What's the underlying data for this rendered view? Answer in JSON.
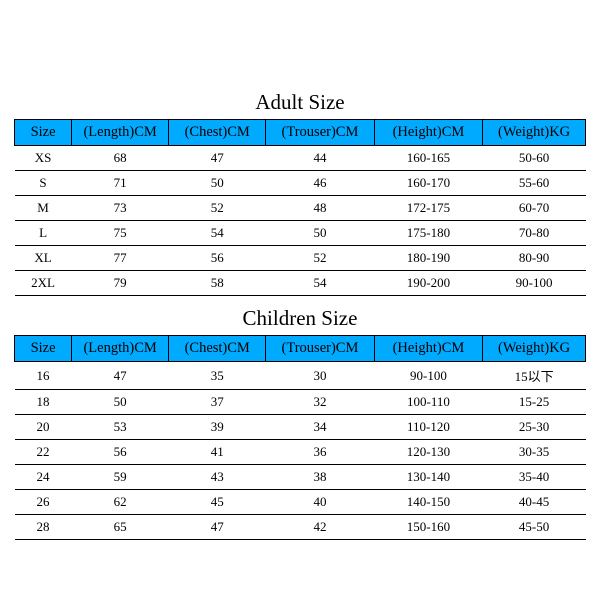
{
  "adult": {
    "title": "Adult Size",
    "columns": [
      "Size",
      "(Length)CM",
      "(Chest)CM",
      "(Trouser)CM",
      "(Height)CM",
      "(Weight)KG"
    ],
    "rows": [
      [
        "XS",
        "68",
        "47",
        "44",
        "160-165",
        "50-60"
      ],
      [
        "S",
        "71",
        "50",
        "46",
        "160-170",
        "55-60"
      ],
      [
        "M",
        "73",
        "52",
        "48",
        "172-175",
        "60-70"
      ],
      [
        "L",
        "75",
        "54",
        "50",
        "175-180",
        "70-80"
      ],
      [
        "XL",
        "77",
        "56",
        "52",
        "180-190",
        "80-90"
      ],
      [
        "2XL",
        "79",
        "58",
        "54",
        "190-200",
        "90-100"
      ]
    ]
  },
  "children": {
    "title": "Children Size",
    "columns": [
      "Size",
      "(Length)CM",
      "(Chest)CM",
      "(Trouser)CM",
      "(Height)CM",
      "(Weight)KG"
    ],
    "rows": [
      [
        "16",
        "47",
        "35",
        "30",
        "90-100",
        "15以下"
      ],
      [
        "18",
        "50",
        "37",
        "32",
        "100-110",
        "15-25"
      ],
      [
        "20",
        "53",
        "39",
        "34",
        "110-120",
        "25-30"
      ],
      [
        "22",
        "56",
        "41",
        "36",
        "120-130",
        "30-35"
      ],
      [
        "24",
        "59",
        "43",
        "38",
        "130-140",
        "35-40"
      ],
      [
        "26",
        "62",
        "45",
        "40",
        "140-150",
        "40-45"
      ],
      [
        "28",
        "65",
        "47",
        "42",
        "150-160",
        "45-50"
      ]
    ]
  },
  "style": {
    "header_bg": "#00aaff",
    "border_color": "#000000",
    "bg": "#ffffff",
    "title_fontsize_pt": 16,
    "header_fontsize_pt": 11,
    "cell_fontsize_pt": 10
  }
}
